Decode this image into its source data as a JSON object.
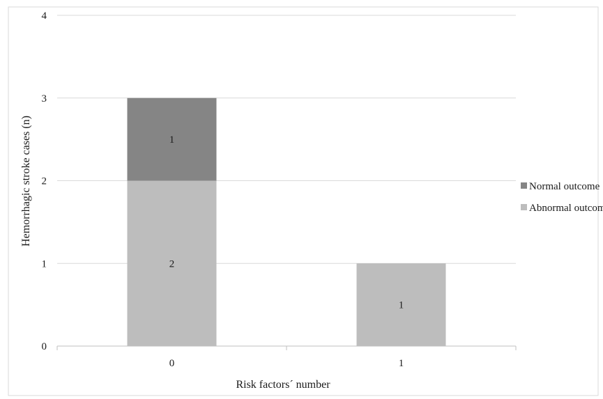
{
  "chart_data": {
    "type": "bar",
    "stacked": true,
    "categories": [
      "0",
      "1"
    ],
    "series": [
      {
        "name": "Abnormal outcome",
        "values": [
          2,
          1
        ],
        "color": "#bdbdbd"
      },
      {
        "name": "Normal outcome",
        "values": [
          1,
          0
        ],
        "color": "#858585"
      }
    ],
    "xlabel": "Risk factors´ number",
    "ylabel": "Hemorrhagic  stroke cases (n)",
    "ylim": [
      0,
      4
    ],
    "yticks": [
      "0",
      "1",
      "2",
      "3",
      "4"
    ],
    "grid": true,
    "legend_position": "right",
    "legend_order": [
      "Normal outcome",
      "Abnormal outcome"
    ]
  }
}
